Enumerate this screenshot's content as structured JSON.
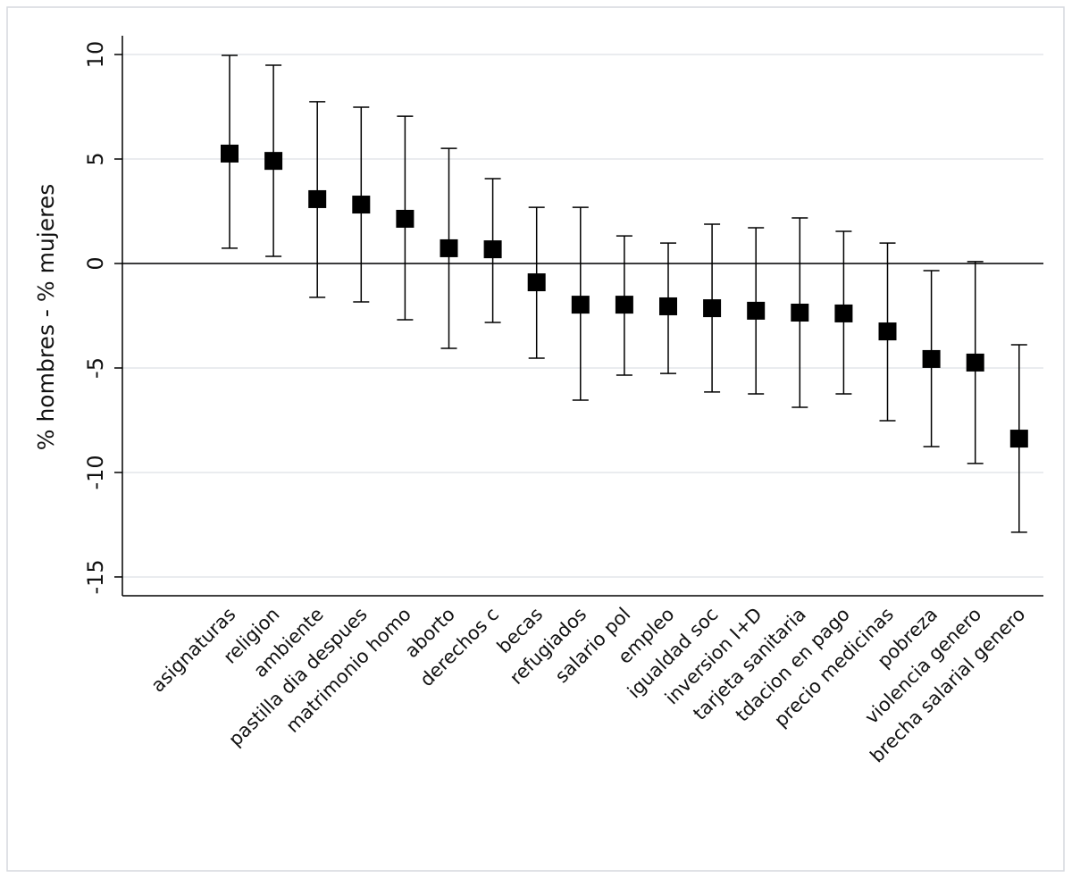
{
  "chart_data": {
    "type": "errorbar",
    "ylabel": "% hombres - % mujeres",
    "categories": [
      "asignaturas",
      "religion",
      "ambiente",
      "pastilla dia despues",
      "matrimonio homo",
      "aborto",
      "derechos c",
      "becas",
      "refugiados",
      "salario pol",
      "empleo",
      "igualdad soc",
      "inversion I+D",
      "tarjeta sanitaria",
      "tdacion en pago",
      "precio medicinas",
      "pobreza",
      "violencia genero",
      "brecha salarial genero"
    ],
    "values": [
      5.26,
      4.91,
      3.08,
      2.82,
      2.14,
      0.73,
      0.68,
      -0.9,
      -1.97,
      -1.97,
      -2.05,
      -2.14,
      -2.26,
      -2.35,
      -2.39,
      -3.25,
      -4.57,
      -4.74,
      -8.38
    ],
    "lower": [
      0.73,
      0.34,
      -1.62,
      -1.84,
      -2.69,
      -4.06,
      -2.82,
      -4.53,
      -6.54,
      -5.34,
      -5.26,
      -6.15,
      -6.24,
      -6.88,
      -6.24,
      -7.52,
      -8.76,
      -9.57,
      -12.86
    ],
    "upper": [
      9.96,
      9.49,
      7.74,
      7.48,
      7.05,
      5.51,
      4.06,
      2.69,
      2.69,
      1.32,
      0.98,
      1.88,
      1.71,
      2.18,
      1.54,
      0.98,
      -0.34,
      0.09,
      -3.89
    ],
    "color": "#000000",
    "ylim": [
      -15.9,
      10.9
    ],
    "yticks": [
      -15,
      -10,
      -5,
      0,
      5,
      10
    ],
    "grid": true,
    "hline": 0
  }
}
